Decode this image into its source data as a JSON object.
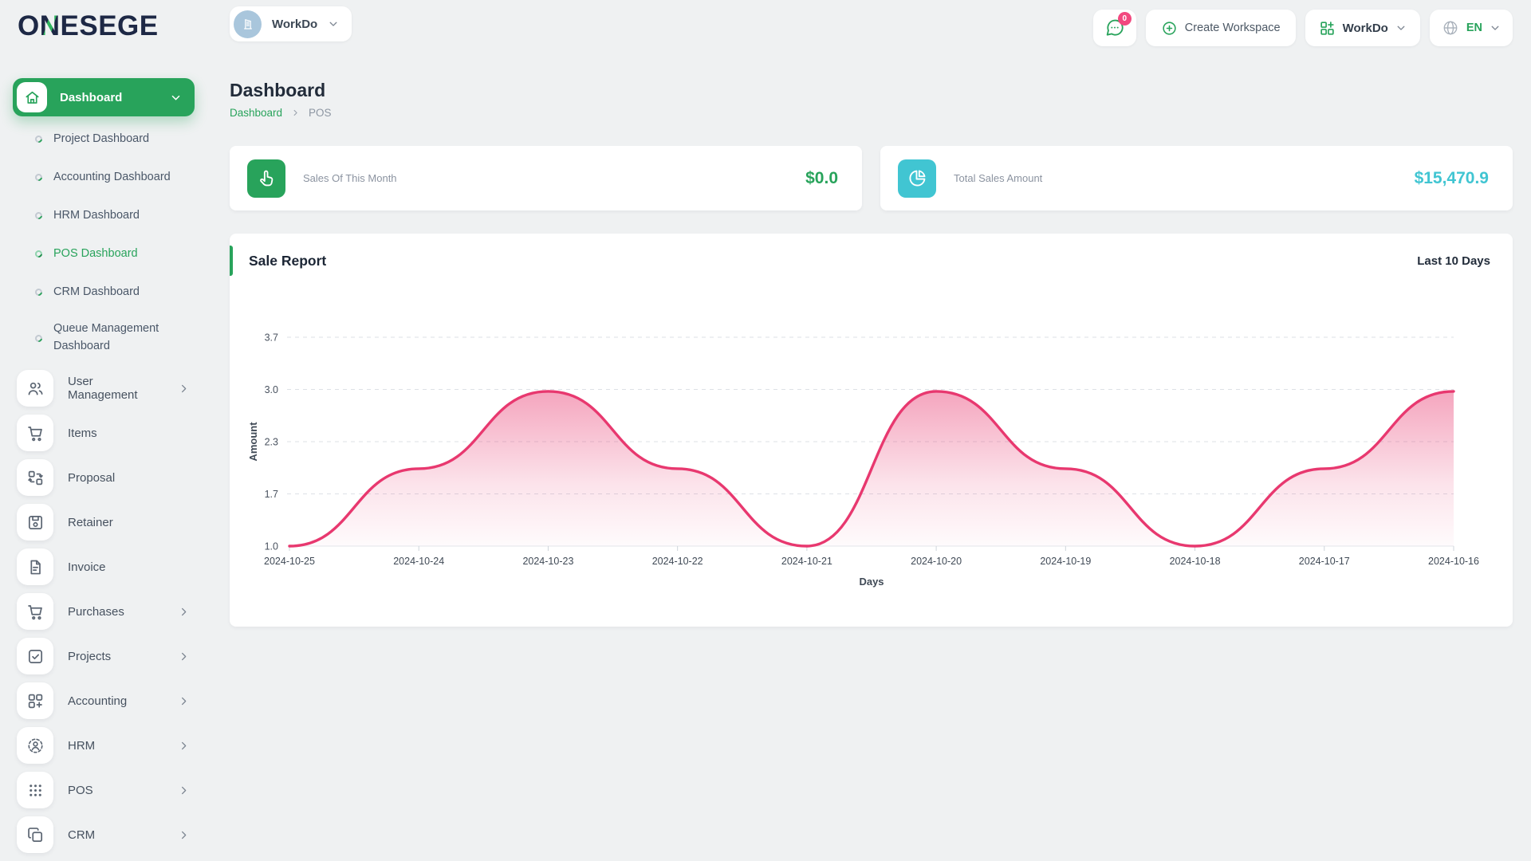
{
  "brand": {
    "logo_text_pre": "O",
    "logo_text_accent": "N",
    "logo_text_post": "ESEGE"
  },
  "topbar": {
    "workspace_switcher": {
      "label": "WorkDo"
    },
    "messages_badge": "0",
    "create_workspace_label": "Create Workspace",
    "apps_menu_label": "WorkDo",
    "language": "EN"
  },
  "sidebar": {
    "active_group": {
      "label": "Dashboard"
    },
    "children": [
      {
        "label": "Project Dashboard"
      },
      {
        "label": "Accounting Dashboard"
      },
      {
        "label": "HRM Dashboard"
      },
      {
        "label": "POS Dashboard",
        "active": true
      },
      {
        "label": "CRM Dashboard"
      },
      {
        "label": "Queue Management Dashboard"
      }
    ],
    "items": [
      {
        "label": "User Management",
        "expandable": true
      },
      {
        "label": "Items",
        "expandable": false
      },
      {
        "label": "Proposal",
        "expandable": false
      },
      {
        "label": "Retainer",
        "expandable": false
      },
      {
        "label": "Invoice",
        "expandable": false
      },
      {
        "label": "Purchases",
        "expandable": true
      },
      {
        "label": "Projects",
        "expandable": true
      },
      {
        "label": "Accounting",
        "expandable": true
      },
      {
        "label": "HRM",
        "expandable": true
      },
      {
        "label": "POS",
        "expandable": true
      },
      {
        "label": "CRM",
        "expandable": true
      }
    ]
  },
  "page": {
    "title": "Dashboard",
    "breadcrumb": [
      "Dashboard",
      "POS"
    ]
  },
  "stats": [
    {
      "label": "Sales Of This Month",
      "value": "$0.0",
      "accent": "#28a35b",
      "icon": "hand-click-icon"
    },
    {
      "label": "Total Sales Amount",
      "value": "$15,470.9",
      "accent": "#41c5d2",
      "icon": "pie-chart-icon"
    }
  ],
  "report": {
    "title": "Sale Report",
    "range_label": "Last 10 Days"
  },
  "chart_data": {
    "type": "area",
    "title": "Sale Report",
    "x": [
      "2024-10-25",
      "2024-10-24",
      "2024-10-23",
      "2024-10-22",
      "2024-10-21",
      "2024-10-20",
      "2024-10-19",
      "2024-10-18",
      "2024-10-17",
      "2024-10-16"
    ],
    "values": [
      1,
      2,
      3,
      2,
      1,
      3,
      2,
      1,
      2,
      3
    ],
    "xlabel": "Days",
    "ylabel": "Amount",
    "ylim": [
      1.0,
      3.7
    ],
    "yticks": [
      1.0,
      1.7,
      2.3,
      3.0,
      3.7
    ],
    "grid": "horizontal-dashed",
    "legend": "none",
    "smooth": true,
    "line_color": "#e8386f"
  },
  "colors": {
    "primary_green": "#28a35b",
    "cyan": "#41c5d2",
    "pink": "#e8386f",
    "badge_pink": "#f2487f",
    "background": "#eff1f2"
  }
}
